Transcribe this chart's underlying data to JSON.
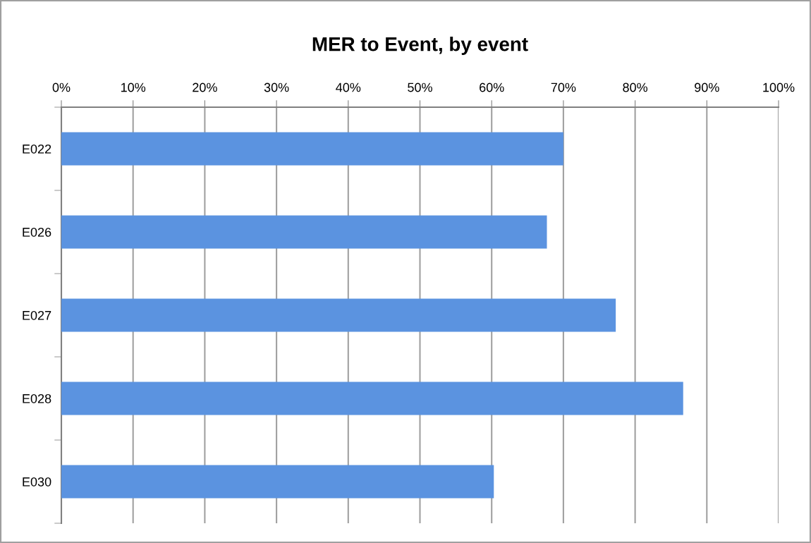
{
  "chart_data": {
    "type": "bar",
    "orientation": "horizontal",
    "title": "MER to Event, by event",
    "categories": [
      "E022",
      "E026",
      "E027",
      "E028",
      "E030"
    ],
    "values": [
      70,
      67.7,
      77.3,
      86.7,
      60.3
    ],
    "color": "#5b93e0",
    "xlim": [
      0,
      100
    ],
    "xticks": [
      {
        "value": 0,
        "label": "0%"
      },
      {
        "value": 10,
        "label": "10%"
      },
      {
        "value": 20,
        "label": "20%"
      },
      {
        "value": 30,
        "label": "30%"
      },
      {
        "value": 40,
        "label": "40%"
      },
      {
        "value": 50,
        "label": "50%"
      },
      {
        "value": 60,
        "label": "60%"
      },
      {
        "value": 70,
        "label": "70%"
      },
      {
        "value": 80,
        "label": "80%"
      },
      {
        "value": 90,
        "label": "90%"
      },
      {
        "value": 100,
        "label": "100%"
      }
    ],
    "grid": "x",
    "legend": false
  }
}
